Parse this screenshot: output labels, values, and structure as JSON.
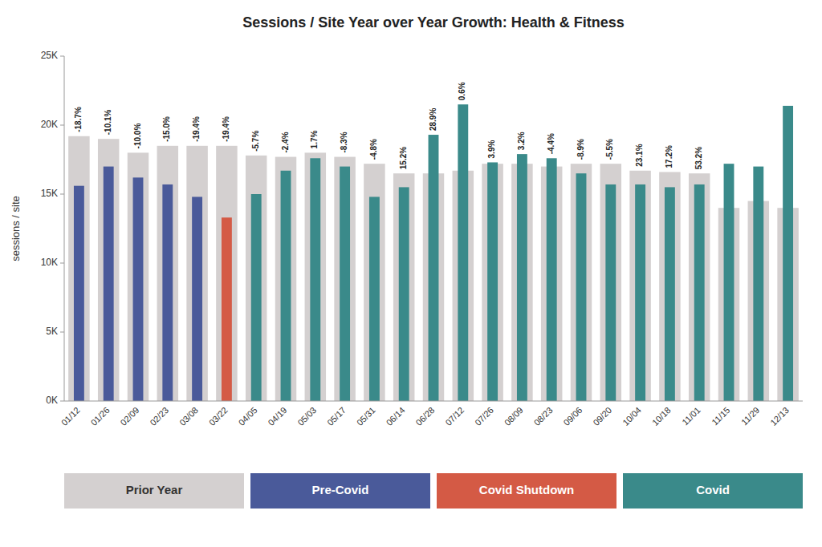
{
  "chart_data": {
    "type": "bar",
    "title": "Sessions / Site Year over Year Growth: Health & Fitness",
    "ylabel": "sessions / site",
    "categories": [
      "01/12",
      "01/26",
      "02/09",
      "02/23",
      "03/08",
      "03/22",
      "04/05",
      "04/19",
      "05/03",
      "05/17",
      "05/31",
      "06/14",
      "06/28",
      "07/12",
      "07/26",
      "08/09",
      "08/23",
      "09/06",
      "09/20",
      "10/04",
      "10/18",
      "11/01",
      "11/15",
      "11/29",
      "12/13"
    ],
    "series": [
      {
        "name": "Prior Year",
        "color": "#d4d0d0",
        "values": [
          19200,
          19000,
          18000,
          18500,
          18500,
          18500,
          17800,
          17700,
          18000,
          17700,
          17200,
          16500,
          16500,
          16700,
          17200,
          17200,
          17000,
          17200,
          17200,
          16700,
          16600,
          16500,
          14000,
          14500,
          14000
        ]
      },
      {
        "name": "Pre-Covid",
        "color": "#4a5a9a",
        "values": [
          15600,
          17000,
          16200,
          15700,
          14800,
          null,
          null,
          null,
          null,
          null,
          null,
          null,
          null,
          null,
          null,
          null,
          null,
          null,
          null,
          null,
          null,
          null,
          null,
          null,
          null
        ]
      },
      {
        "name": "Covid Shutdown",
        "color": "#d45a45",
        "values": [
          null,
          null,
          null,
          null,
          null,
          13300,
          null,
          null,
          null,
          null,
          null,
          null,
          null,
          null,
          null,
          null,
          null,
          null,
          null,
          null,
          null,
          null,
          null,
          null,
          null
        ]
      },
      {
        "name": "Covid",
        "color": "#3a8a8a",
        "values": [
          null,
          null,
          null,
          null,
          null,
          null,
          15000,
          16700,
          17600,
          17000,
          14800,
          15500,
          19300,
          21500,
          17300,
          17900,
          17600,
          16500,
          15700,
          15700,
          15500,
          15700,
          17200,
          17000,
          21400
        ]
      }
    ],
    "annotations": [
      {
        "x": "01/12",
        "text": "-18.7%"
      },
      {
        "x": "01/26",
        "text": "-10.1%"
      },
      {
        "x": "02/09",
        "text": "-10.0%"
      },
      {
        "x": "02/23",
        "text": "-15.0%"
      },
      {
        "x": "03/08",
        "text": "-19.4%"
      },
      {
        "x": "03/22",
        "text": "-19.4%"
      },
      {
        "x": "04/05",
        "text": "-5.7%"
      },
      {
        "x": "04/19",
        "text": "-2.4%"
      },
      {
        "x": "05/03",
        "text": "1.7%"
      },
      {
        "x": "05/17",
        "text": "-8.3%"
      },
      {
        "x": "05/31",
        "text": "-4.8%"
      },
      {
        "x": "06/14",
        "text": "15.2%"
      },
      {
        "x": "06/28",
        "text": "28.9%"
      },
      {
        "x": "07/12",
        "text": "0.6%"
      },
      {
        "x": "07/26",
        "text": "3.9%"
      },
      {
        "x": "08/09",
        "text": "3.2%"
      },
      {
        "x": "08/23",
        "text": "-4.4%"
      },
      {
        "x": "09/06",
        "text": "-8.9%"
      },
      {
        "x": "09/20",
        "text": "-5.5%"
      },
      {
        "x": "10/04",
        "text": "23.1%"
      },
      {
        "x": "10/18",
        "text": "17.2%"
      },
      {
        "x": "11/01",
        "text": "53.2%"
      }
    ],
    "ylim": [
      0,
      25000
    ],
    "yticks": [
      {
        "value": 0,
        "label": "0K"
      },
      {
        "value": 5000,
        "label": "5K"
      },
      {
        "value": 10000,
        "label": "10K"
      },
      {
        "value": 15000,
        "label": "15K"
      },
      {
        "value": 20000,
        "label": "20K"
      },
      {
        "value": 25000,
        "label": "25K"
      }
    ],
    "grid": false,
    "legend": "bottom"
  }
}
